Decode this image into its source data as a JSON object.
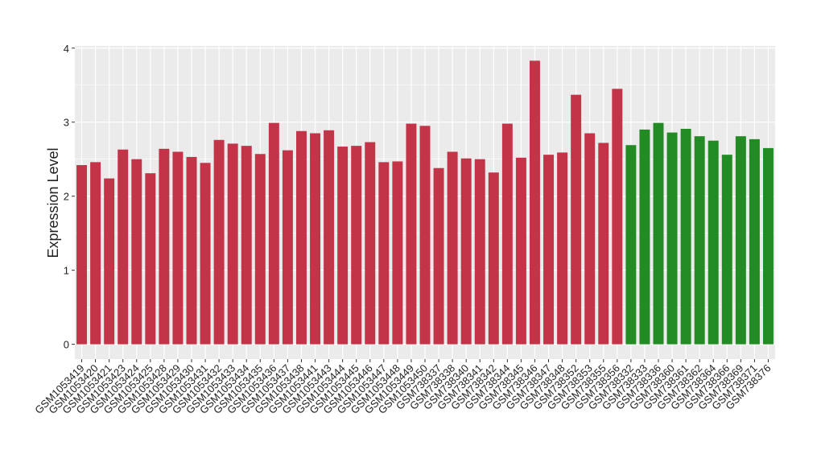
{
  "chart_data": {
    "type": "bar",
    "y_label": "Expression Level",
    "categories": [
      "GSM1053419",
      "GSM1053420",
      "GSM1053421",
      "GSM1053423",
      "GSM1053424",
      "GSM1053425",
      "GSM1053428",
      "GSM1053429",
      "GSM1053430",
      "GSM1053431",
      "GSM1053432",
      "GSM1053433",
      "GSM1053434",
      "GSM1053435",
      "GSM1053436",
      "GSM1053437",
      "GSM1053438",
      "GSM1053441",
      "GSM1053443",
      "GSM1053444",
      "GSM1053445",
      "GSM1053446",
      "GSM1053447",
      "GSM1053448",
      "GSM1053449",
      "GSM1053450",
      "GSM738337",
      "GSM738338",
      "GSM738340",
      "GSM738341",
      "GSM738342",
      "GSM738344",
      "GSM738345",
      "GSM738346",
      "GSM738347",
      "GSM738348",
      "GSM738352",
      "GSM738353",
      "GSM738355",
      "GSM738356",
      "GSM738332",
      "GSM738333",
      "GSM738336",
      "GSM738360",
      "GSM738361",
      "GSM738362",
      "GSM738364",
      "GSM738366",
      "GSM738369",
      "GSM738371",
      "GSM738376"
    ],
    "values": [
      2.42,
      2.46,
      2.24,
      2.63,
      2.5,
      2.31,
      2.64,
      2.6,
      2.53,
      2.45,
      2.76,
      2.71,
      2.68,
      2.57,
      2.99,
      2.62,
      2.88,
      2.85,
      2.89,
      2.67,
      2.68,
      2.73,
      2.46,
      2.47,
      2.98,
      2.95,
      2.38,
      2.6,
      2.51,
      2.5,
      2.32,
      2.98,
      2.52,
      3.83,
      2.56,
      2.59,
      3.37,
      2.85,
      2.72,
      3.45,
      2.69,
      2.9,
      2.99,
      2.86,
      2.91,
      2.81,
      2.75,
      2.56,
      2.81,
      2.77,
      2.65
    ],
    "colors": [
      "#c33449",
      "#c33449",
      "#c33449",
      "#c33449",
      "#c33449",
      "#c33449",
      "#c33449",
      "#c33449",
      "#c33449",
      "#c33449",
      "#c33449",
      "#c33449",
      "#c33449",
      "#c33449",
      "#c33449",
      "#c33449",
      "#c33449",
      "#c33449",
      "#c33449",
      "#c33449",
      "#c33449",
      "#c33449",
      "#c33449",
      "#c33449",
      "#c33449",
      "#c33449",
      "#c33449",
      "#c33449",
      "#c33449",
      "#c33449",
      "#c33449",
      "#c33449",
      "#c33449",
      "#c33449",
      "#c33449",
      "#c33449",
      "#c33449",
      "#c33449",
      "#c33449",
      "#c33449",
      "#238b23",
      "#238b23",
      "#238b23",
      "#238b23",
      "#238b23",
      "#238b23",
      "#238b23",
      "#238b23",
      "#238b23",
      "#238b23",
      "#238b23"
    ],
    "ylim": [
      -0.2,
      4.03
    ],
    "yticks": [
      0,
      1,
      2,
      3,
      4
    ],
    "grid": true
  }
}
